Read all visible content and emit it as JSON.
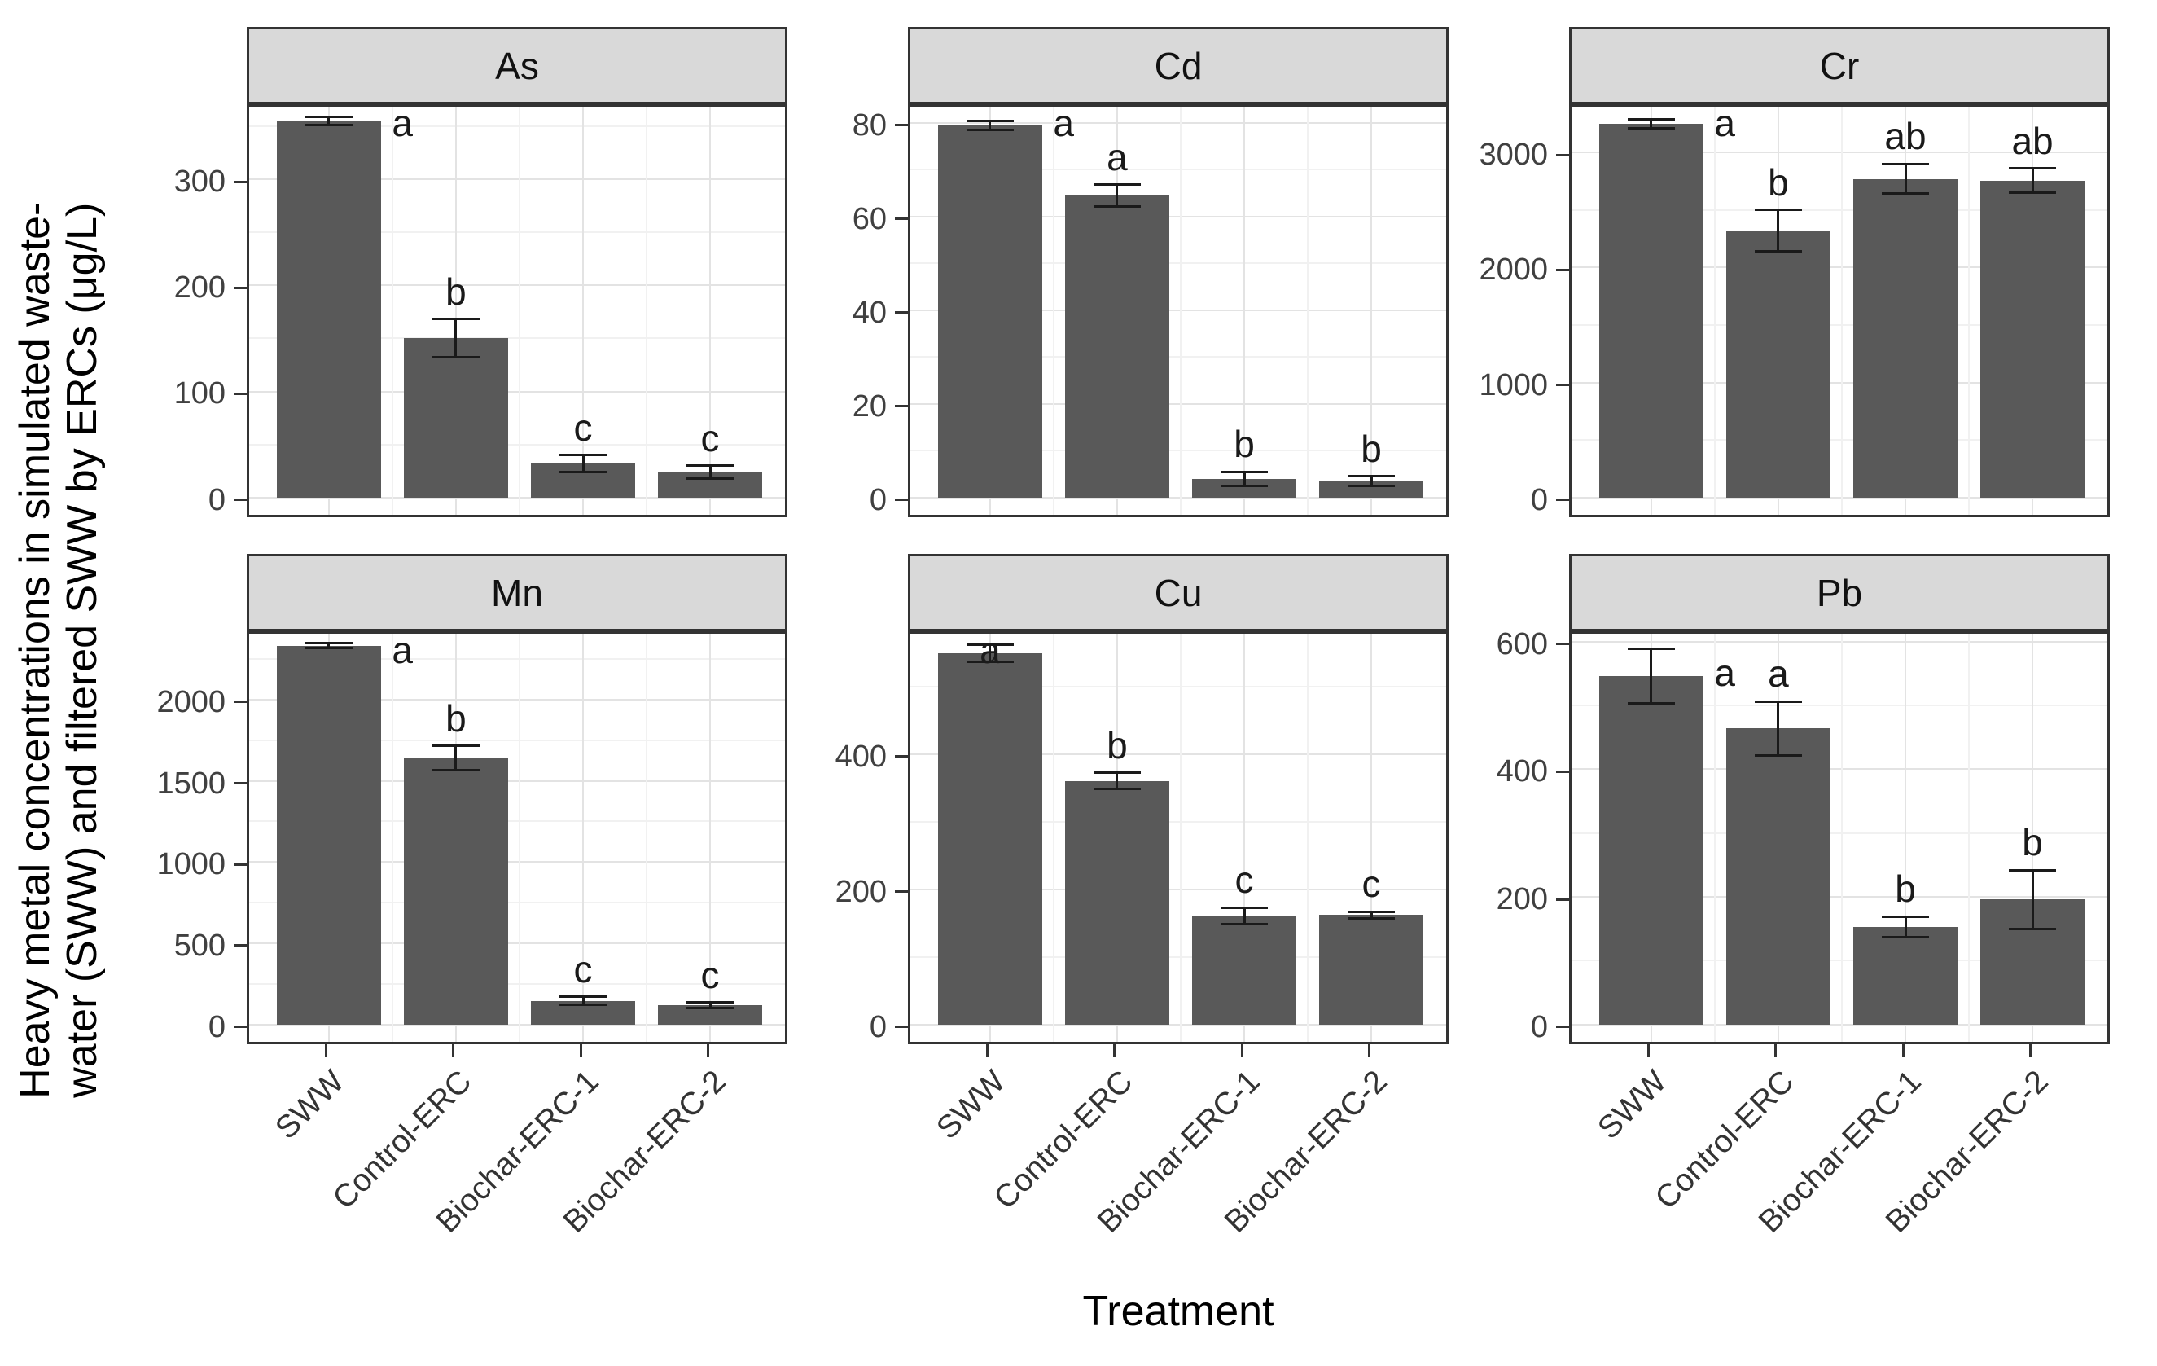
{
  "figure": {
    "y_axis_title_line1": "Heavy metal concentrations in simulated waste-",
    "y_axis_title_line2": "water (SWW) and filtered SWW by ERCs (μg/L)",
    "x_axis_title": "Treatment"
  },
  "colors": {
    "bar_fill": "#595959",
    "error_bar": "#1a1a1a",
    "sig_letter": "#1a1a1a",
    "strip_background": "#d9d9d9",
    "panel_border": "#333333",
    "grid_major": "#e3e3e3",
    "grid_minor": "#f1f1f1",
    "tick_label": "#404040",
    "axis_title": "#000000"
  },
  "chart_data": {
    "type": "bar",
    "title": "",
    "xlabel": "Treatment",
    "ylabel": "Heavy metal concentrations in simulated waste-water (SWW) and filtered SWW by ERCs (μg/L)",
    "categories": [
      "SWW",
      "Control-ERC",
      "Biochar-ERC-1",
      "Biochar-ERC-2"
    ],
    "grid": true,
    "legend_position": "none",
    "error_bars": true,
    "facets": [
      {
        "metal": "As",
        "ylim": [
          0,
          373
        ],
        "ticks": [
          0,
          100,
          200,
          300
        ],
        "minor_ticks": [
          50,
          150,
          250,
          350
        ],
        "values": [
          355,
          150,
          32,
          24
        ],
        "errors": [
          4,
          18,
          8,
          6
        ],
        "sig_letters": [
          "a",
          "b",
          "c",
          "c"
        ],
        "letter_placement": [
          "side",
          "above",
          "above",
          "above"
        ]
      },
      {
        "metal": "Cd",
        "ylim": [
          0,
          84.5
        ],
        "ticks": [
          0,
          20,
          40,
          60,
          80
        ],
        "minor_ticks": [
          10,
          30,
          50,
          70
        ],
        "values": [
          79.5,
          64.5,
          4,
          3.5
        ],
        "errors": [
          1,
          2.3,
          1.5,
          1
        ],
        "sig_letters": [
          "a",
          "a",
          "b",
          "b"
        ],
        "letter_placement": [
          "side",
          "above",
          "above",
          "above"
        ]
      },
      {
        "metal": "Cr",
        "ylim": [
          0,
          3440
        ],
        "ticks": [
          0,
          1000,
          2000,
          3000
        ],
        "minor_ticks": [
          500,
          1500,
          2500
        ],
        "values": [
          3250,
          2320,
          2770,
          2755
        ],
        "errors": [
          40,
          180,
          130,
          105
        ],
        "sig_letters": [
          "a",
          "b",
          "ab",
          "ab"
        ],
        "letter_placement": [
          "side",
          "above",
          "above",
          "above"
        ]
      },
      {
        "metal": "Mn",
        "ylim": [
          0,
          2435
        ],
        "ticks": [
          0,
          500,
          1000,
          1500,
          2000
        ],
        "minor_ticks": [
          250,
          750,
          1250,
          1750,
          2250
        ],
        "values": [
          2330,
          1640,
          145,
          118
        ],
        "errors": [
          15,
          75,
          25,
          18
        ],
        "sig_letters": [
          "a",
          "b",
          "c",
          "c"
        ],
        "letter_placement": [
          "side",
          "above",
          "above",
          "above"
        ]
      },
      {
        "metal": "Cu",
        "ylim": [
          0,
          585
        ],
        "ticks": [
          0,
          200,
          400
        ],
        "minor_ticks": [
          100,
          300,
          500
        ],
        "values": [
          549,
          360,
          161,
          162
        ],
        "errors": [
          13,
          12,
          12,
          5
        ],
        "sig_letters": [
          "a",
          "b",
          "c",
          "c"
        ],
        "letter_placement": [
          "above",
          "above",
          "above",
          "above"
        ]
      },
      {
        "metal": "Pb",
        "ylim": [
          0,
          620
        ],
        "ticks": [
          0,
          200,
          400,
          600
        ],
        "minor_ticks": [
          100,
          300,
          500
        ],
        "values": [
          546,
          464,
          153,
          196
        ],
        "errors": [
          43,
          42,
          16,
          46
        ],
        "sig_letters": [
          "a",
          "a",
          "b",
          "b"
        ],
        "letter_placement": [
          "side",
          "above",
          "above",
          "above"
        ]
      }
    ]
  }
}
